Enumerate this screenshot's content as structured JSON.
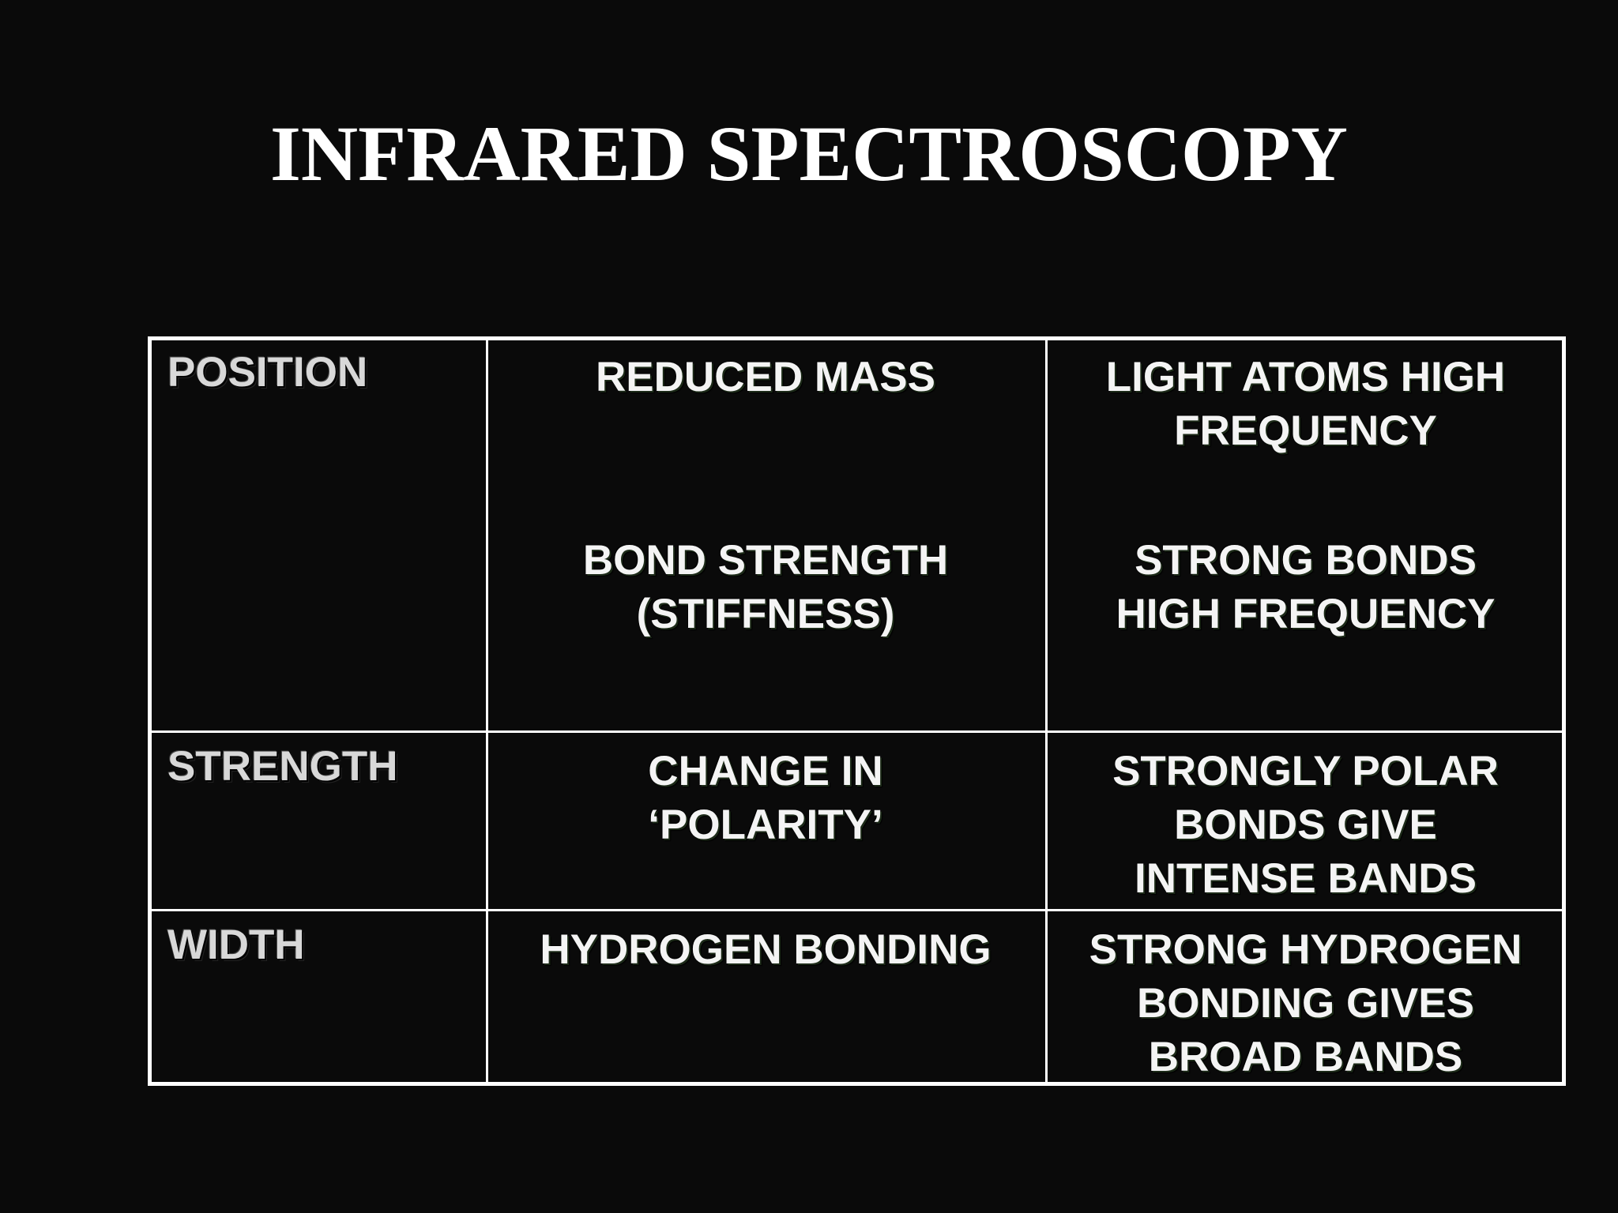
{
  "title": "INFRARED SPECTROSCOPY",
  "table": {
    "rows": [
      {
        "label": "POSITION",
        "items": [
          {
            "factor": "REDUCED MASS",
            "effect": "LIGHT ATOMS HIGH\nFREQUENCY"
          },
          {
            "factor": "BOND STRENGTH\n(STIFFNESS)",
            "effect": "STRONG BONDS\nHIGH FREQUENCY"
          }
        ]
      },
      {
        "label": "STRENGTH",
        "items": [
          {
            "factor": "CHANGE IN\n‘POLARITY’",
            "effect": "STRONGLY POLAR\nBONDS GIVE\nINTENSE BANDS"
          }
        ]
      },
      {
        "label": "WIDTH",
        "items": [
          {
            "factor": "HYDROGEN BONDING",
            "effect": "STRONG HYDROGEN\nBONDING GIVES\nBROAD BANDS"
          }
        ]
      }
    ]
  }
}
